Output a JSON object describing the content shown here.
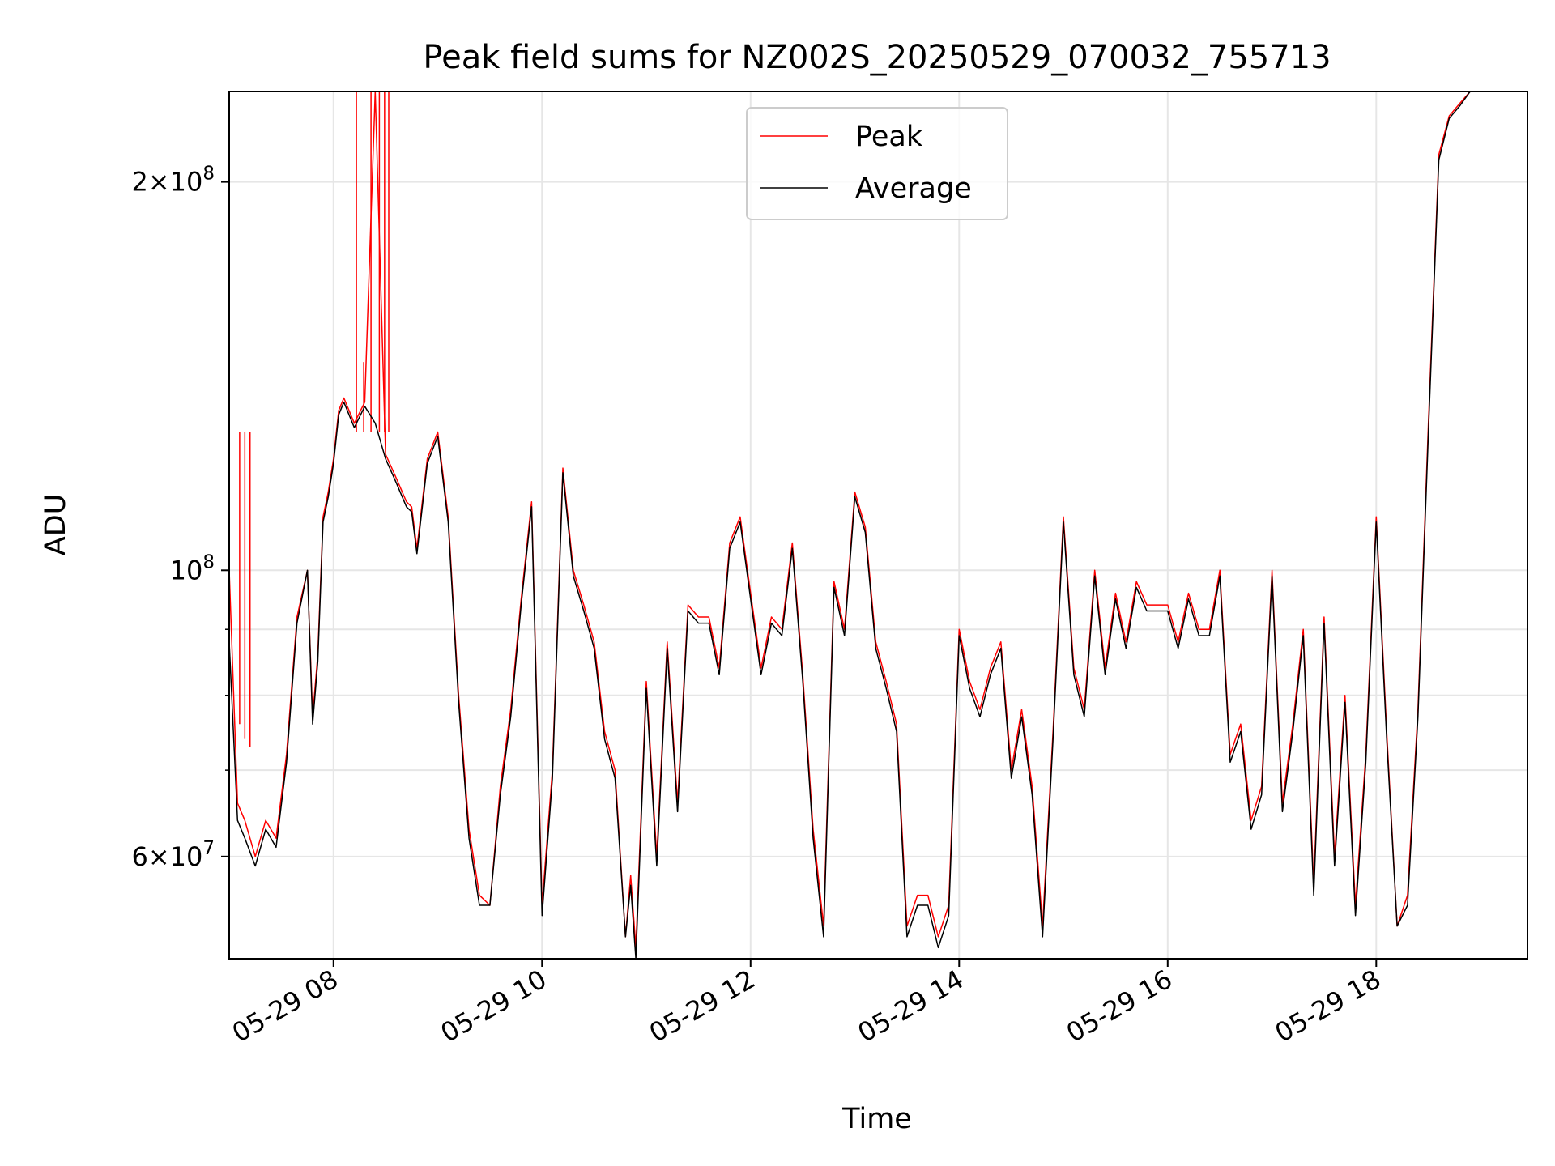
{
  "chart_data": {
    "type": "line",
    "title": "Peak field sums for NZ002S_20250529_070032_755713",
    "xlabel": "Time",
    "ylabel": "ADU",
    "yscale": "log",
    "xlim": [
      7.0,
      19.45
    ],
    "ylim": [
      50000000,
      235000000
    ],
    "x_ticks": [
      {
        "value": 8,
        "label": "05-29 08"
      },
      {
        "value": 10,
        "label": "05-29 10"
      },
      {
        "value": 12,
        "label": "05-29 12"
      },
      {
        "value": 14,
        "label": "05-29 14"
      },
      {
        "value": 16,
        "label": "05-29 16"
      },
      {
        "value": 18,
        "label": "05-29 18"
      }
    ],
    "y_ticks_major": [
      {
        "value": 100000000,
        "base": "10",
        "exp": "8"
      },
      {
        "value": 200000000,
        "base": "2×10",
        "exp": "8"
      },
      {
        "value": 60000000,
        "base": "6×10",
        "exp": "7"
      }
    ],
    "y_ticks_minor": [
      70000000,
      80000000,
      90000000
    ],
    "grid": true,
    "legend_position": "top-center",
    "colors": {
      "peak": "#ff0000",
      "average": "#000000",
      "grid": "#e6e6e6"
    },
    "series": [
      {
        "name": "Peak",
        "x": [
          7.0,
          7.08,
          7.15,
          7.25,
          7.35,
          7.45,
          7.55,
          7.65,
          7.75,
          7.8,
          7.85,
          7.9,
          7.95,
          8.0,
          8.05,
          8.1,
          8.2,
          8.3,
          8.4,
          8.5,
          8.6,
          8.7,
          8.75,
          8.8,
          8.9,
          9.0,
          9.1,
          9.2,
          9.3,
          9.4,
          9.5,
          9.6,
          9.7,
          9.8,
          9.9,
          10.0,
          10.1,
          10.2,
          10.3,
          10.4,
          10.5,
          10.6,
          10.7,
          10.8,
          10.85,
          10.9,
          11.0,
          11.1,
          11.2,
          11.3,
          11.4,
          11.5,
          11.6,
          11.7,
          11.8,
          11.9,
          12.0,
          12.1,
          12.2,
          12.3,
          12.4,
          12.5,
          12.6,
          12.7,
          12.8,
          12.9,
          13.0,
          13.1,
          13.2,
          13.3,
          13.4,
          13.5,
          13.6,
          13.7,
          13.8,
          13.9,
          14.0,
          14.1,
          14.2,
          14.3,
          14.4,
          14.5,
          14.6,
          14.7,
          14.8,
          14.9,
          15.0,
          15.1,
          15.2,
          15.3,
          15.4,
          15.5,
          15.6,
          15.7,
          15.8,
          15.9,
          16.0,
          16.1,
          16.2,
          16.3,
          16.4,
          16.5,
          16.6,
          16.7,
          16.8,
          16.9,
          17.0,
          17.1,
          17.2,
          17.3,
          17.4,
          17.5,
          17.6,
          17.7,
          17.8,
          17.9,
          18.0,
          18.1,
          18.2,
          18.3,
          18.4,
          18.5,
          18.6,
          18.7,
          18.8,
          18.9,
          19.0
        ],
        "y": [
          100000000,
          66000000,
          64000000,
          60000000,
          64000000,
          62000000,
          72000000,
          92000000,
          100000000,
          77000000,
          86000000,
          110000000,
          115000000,
          122000000,
          133000000,
          136000000,
          130000000,
          135000000,
          235000000,
          123000000,
          118000000,
          113000000,
          112000000,
          104000000,
          122000000,
          128000000,
          110000000,
          80000000,
          63000000,
          56000000,
          55000000,
          68000000,
          78000000,
          95000000,
          113000000,
          55000000,
          70000000,
          120000000,
          100000000,
          94000000,
          88000000,
          75000000,
          70000000,
          52000000,
          58000000,
          51000000,
          82000000,
          60000000,
          88000000,
          66000000,
          94000000,
          92000000,
          92000000,
          84000000,
          105000000,
          110000000,
          96000000,
          84000000,
          92000000,
          90000000,
          105000000,
          83000000,
          63000000,
          53000000,
          98000000,
          90000000,
          115000000,
          108000000,
          88000000,
          82000000,
          76000000,
          53000000,
          56000000,
          56000000,
          52000000,
          55000000,
          90000000,
          82000000,
          78000000,
          84000000,
          88000000,
          70000000,
          78000000,
          68000000,
          53000000,
          75000000,
          110000000,
          84000000,
          78000000,
          100000000,
          84000000,
          96000000,
          88000000,
          98000000,
          94000000,
          94000000,
          94000000,
          88000000,
          96000000,
          90000000,
          90000000,
          100000000,
          72000000,
          76000000,
          64000000,
          68000000,
          100000000,
          66000000,
          76000000,
          90000000,
          57000000,
          92000000,
          60000000,
          80000000,
          55000000,
          72000000,
          110000000,
          75000000,
          53000000,
          56000000,
          78000000,
          130000000,
          210000000,
          225000000,
          230000000,
          235000000,
          235000000
        ]
      },
      {
        "name": "Average",
        "x": [
          7.0,
          7.08,
          7.15,
          7.25,
          7.35,
          7.45,
          7.55,
          7.65,
          7.75,
          7.8,
          7.85,
          7.9,
          7.95,
          8.0,
          8.05,
          8.1,
          8.2,
          8.3,
          8.4,
          8.5,
          8.6,
          8.7,
          8.75,
          8.8,
          8.9,
          9.0,
          9.1,
          9.2,
          9.3,
          9.4,
          9.5,
          9.6,
          9.7,
          9.8,
          9.9,
          10.0,
          10.1,
          10.2,
          10.3,
          10.4,
          10.5,
          10.6,
          10.7,
          10.8,
          10.85,
          10.9,
          11.0,
          11.1,
          11.2,
          11.3,
          11.4,
          11.5,
          11.6,
          11.7,
          11.8,
          11.9,
          12.0,
          12.1,
          12.2,
          12.3,
          12.4,
          12.5,
          12.6,
          12.7,
          12.8,
          12.9,
          13.0,
          13.1,
          13.2,
          13.3,
          13.4,
          13.5,
          13.6,
          13.7,
          13.8,
          13.9,
          14.0,
          14.1,
          14.2,
          14.3,
          14.4,
          14.5,
          14.6,
          14.7,
          14.8,
          14.9,
          15.0,
          15.1,
          15.2,
          15.3,
          15.4,
          15.5,
          15.6,
          15.7,
          15.8,
          15.9,
          16.0,
          16.1,
          16.2,
          16.3,
          16.4,
          16.5,
          16.6,
          16.7,
          16.8,
          16.9,
          17.0,
          17.1,
          17.2,
          17.3,
          17.4,
          17.5,
          17.6,
          17.7,
          17.8,
          17.9,
          18.0,
          18.1,
          18.2,
          18.3,
          18.4,
          18.5,
          18.6,
          18.7,
          18.8,
          18.9,
          19.0
        ],
        "y": [
          88000000,
          64000000,
          62000000,
          59000000,
          63000000,
          61000000,
          71000000,
          91000000,
          100000000,
          76000000,
          85000000,
          109000000,
          114000000,
          121000000,
          132000000,
          135000000,
          129000000,
          134000000,
          130000000,
          122000000,
          117000000,
          112000000,
          111000000,
          103000000,
          121000000,
          127000000,
          109000000,
          79000000,
          62000000,
          55000000,
          55000000,
          67000000,
          77000000,
          94000000,
          112000000,
          54000000,
          69000000,
          119000000,
          99000000,
          93000000,
          87000000,
          74000000,
          69000000,
          52000000,
          57000000,
          50000000,
          81000000,
          59000000,
          87000000,
          65000000,
          93000000,
          91000000,
          91000000,
          83000000,
          104000000,
          109000000,
          95000000,
          83000000,
          91000000,
          89000000,
          104000000,
          82000000,
          62000000,
          52000000,
          97000000,
          89000000,
          114000000,
          107000000,
          87000000,
          81000000,
          75000000,
          52000000,
          55000000,
          55000000,
          51000000,
          54000000,
          89000000,
          81000000,
          77000000,
          83000000,
          87000000,
          69000000,
          77000000,
          67000000,
          52000000,
          74000000,
          109000000,
          83000000,
          77000000,
          99000000,
          83000000,
          95000000,
          87000000,
          97000000,
          93000000,
          93000000,
          93000000,
          87000000,
          95000000,
          89000000,
          89000000,
          99000000,
          71000000,
          75000000,
          63000000,
          67000000,
          99000000,
          65000000,
          75000000,
          89000000,
          56000000,
          91000000,
          59000000,
          79000000,
          54000000,
          71000000,
          109000000,
          74000000,
          53000000,
          55000000,
          77000000,
          128000000,
          208000000,
          224000000,
          229000000,
          235000000,
          235000000
        ]
      }
    ],
    "peak_spikes": [
      {
        "x": 8.22,
        "y": 235000000
      },
      {
        "x": 8.29,
        "y": 145000000
      },
      {
        "x": 8.36,
        "y": 235000000
      },
      {
        "x": 8.44,
        "y": 235000000
      },
      {
        "x": 8.49,
        "y": 235000000
      },
      {
        "x": 8.53,
        "y": 235000000
      },
      {
        "x": 7.1,
        "y": 76000000
      },
      {
        "x": 7.15,
        "y": 74000000
      },
      {
        "x": 7.2,
        "y": 73000000
      }
    ]
  }
}
